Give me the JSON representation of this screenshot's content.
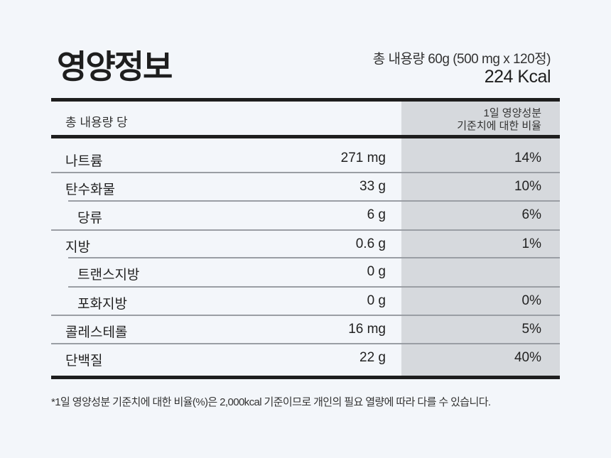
{
  "title": "영양정보",
  "serving": "총 내용량  60g (500 mg x 120정)",
  "calories": "224 Kcal",
  "table": {
    "header_left": "총 내용량 당",
    "header_right_line1": "1일 영양성분",
    "header_right_line2": "기준치에 대한 비율",
    "rows": [
      {
        "name": "나트륨",
        "amount": "271 mg",
        "percent": "14%"
      },
      {
        "name": "탄수화물",
        "amount": "33 g",
        "percent": "10%"
      },
      {
        "name": "당류",
        "amount": "6 g",
        "percent": "6%"
      },
      {
        "name": "지방",
        "amount": "0.6 g",
        "percent": "1%"
      },
      {
        "name": "트랜스지방",
        "amount": "0 g",
        "percent": ""
      },
      {
        "name": "포화지방",
        "amount": "0 g",
        "percent": "0%"
      },
      {
        "name": "콜레스테롤",
        "amount": "16 mg",
        "percent": "5%"
      },
      {
        "name": "단백질",
        "amount": "22 g",
        "percent": "40%"
      }
    ]
  },
  "footnote": "*1일 영양성분 기준치에 대한 비율(%)은 2,000kcal 기준이므로 개인의 필요 열량에 따라 다를 수 있습니다.",
  "colors": {
    "background": "#f3f6fa",
    "percent_column": "#d6d9dd",
    "rule": "#1e1e1e"
  }
}
